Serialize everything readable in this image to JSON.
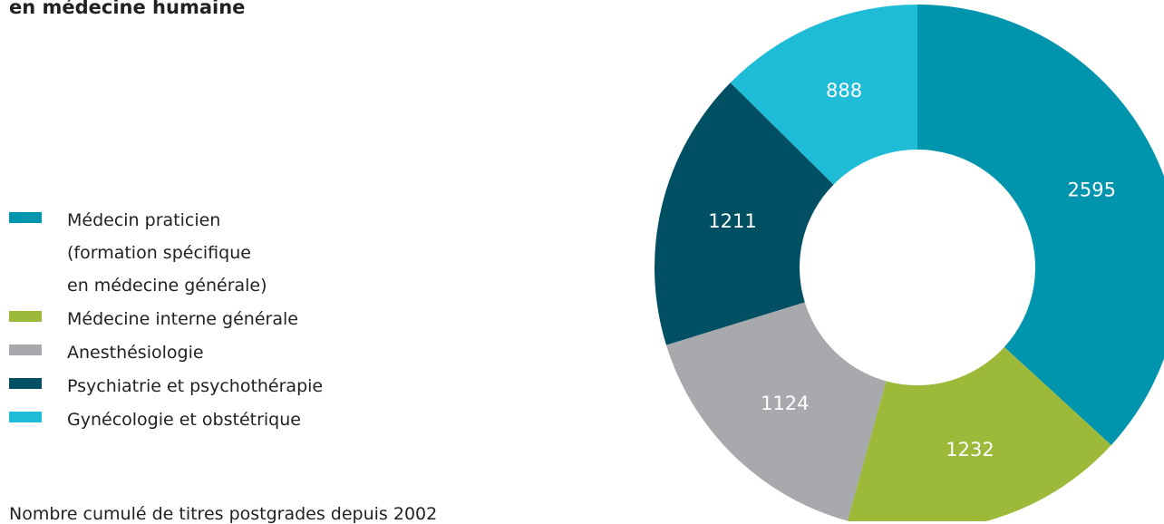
{
  "chart_data": {
    "type": "pie",
    "title": "en médecine humaine",
    "categories": [
      "Médecin praticien\n(formation spécifique\nen médecine générale)",
      "Médecine interne générale",
      "Anesthésiologie",
      "Psychiatrie et psychothérapie",
      "Gynécologie et obstétrique"
    ],
    "values": [
      2595,
      1232,
      1124,
      1211,
      888
    ],
    "colors": [
      "#0095ad",
      "#9cb93a",
      "#a7a9ac",
      "#004f63",
      "#1fbcd7"
    ],
    "note": "Nombre cumulé de titres postgrades depuis 2002"
  }
}
